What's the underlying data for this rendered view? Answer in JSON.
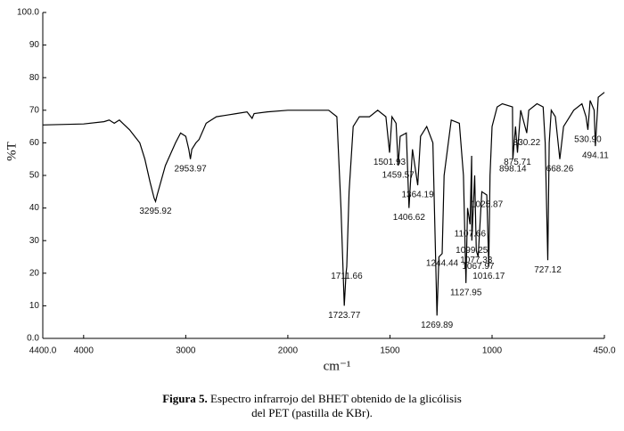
{
  "chart_data": {
    "type": "line",
    "x_label": "cm⁻¹",
    "y_label": "%T",
    "xlim": [
      4400,
      450
    ],
    "ylim": [
      0,
      100
    ],
    "x_scale_change": 2000,
    "xticks": [
      {
        "value": 4400,
        "label": "4400.0"
      },
      4000,
      3000,
      2000,
      1500,
      1000,
      {
        "value": 450,
        "label": "450.0"
      }
    ],
    "yticks": [
      {
        "value": 0,
        "label": "0.0"
      },
      10,
      20,
      30,
      40,
      50,
      60,
      70,
      80,
      90,
      {
        "value": 100,
        "label": "100.0"
      }
    ],
    "color": "#000000",
    "x": [
      4400,
      4000,
      3800,
      3750,
      3700,
      3650,
      3600,
      3550,
      3500,
      3450,
      3400,
      3350,
      3310,
      3295.92,
      3280,
      3200,
      3100,
      3050,
      3000,
      2970,
      2953.97,
      2940,
      2900,
      2870,
      2800,
      2700,
      2600,
      2500,
      2400,
      2350,
      2330,
      2200,
      2000,
      1900,
      1800,
      1760,
      1740,
      1723.77,
      1715,
      1711.66,
      1700,
      1680,
      1650,
      1600,
      1560,
      1520,
      1501.93,
      1490,
      1470,
      1459.57,
      1450,
      1420,
      1406.62,
      1390,
      1364.19,
      1350,
      1320,
      1290,
      1269.89,
      1260,
      1244.44,
      1235,
      1200,
      1160,
      1140,
      1127.95,
      1120,
      1107.66,
      1100,
      1099.25,
      1085,
      1077.33,
      1067.97,
      1050,
      1025.87,
      1016.17,
      1010,
      1000,
      975,
      950,
      900,
      898.14,
      885,
      875.71,
      860,
      830.22,
      820,
      780,
      750,
      740,
      727.12,
      720,
      710,
      690,
      668.26,
      650,
      600,
      560,
      540,
      530.9,
      520,
      500,
      494.11,
      480,
      450
    ],
    "y": [
      65.5,
      65.8,
      66.5,
      67,
      66,
      67,
      65.5,
      64,
      62,
      60,
      55,
      48,
      43,
      42,
      44,
      53,
      60,
      63,
      62,
      58,
      55,
      58,
      60,
      61,
      66,
      68,
      68.5,
      69,
      69.5,
      67.5,
      69,
      69.5,
      70,
      70,
      70,
      68,
      40,
      10,
      20,
      22,
      45,
      65,
      68,
      68,
      70,
      68,
      57,
      68,
      66,
      53,
      62,
      63,
      40,
      58,
      47,
      62,
      65,
      60,
      7,
      25,
      26,
      50,
      67,
      66,
      50,
      17,
      40,
      35,
      56,
      30,
      50,
      27,
      25,
      45,
      44,
      22,
      50,
      65,
      71,
      72,
      71,
      55,
      65,
      57,
      70,
      63,
      70,
      72,
      71,
      60,
      24,
      60,
      70,
      68,
      55,
      65,
      70,
      72,
      68,
      64,
      73,
      70,
      59,
      74,
      75.5
    ],
    "annotations": [
      {
        "text": "3295.92",
        "x": 3295.92
      },
      {
        "text": "2953.97",
        "x": 2953.97
      },
      {
        "text": "1723.77",
        "x": 1723.77
      },
      {
        "text": "1711.66",
        "x": 1711.66
      },
      {
        "text": "1501.93",
        "x": 1501.93
      },
      {
        "text": "1459.57",
        "x": 1459.57
      },
      {
        "text": "1406.62",
        "x": 1406.62
      },
      {
        "text": "1364.19",
        "x": 1364.19
      },
      {
        "text": "1269.89",
        "x": 1269.89
      },
      {
        "text": "1244.44",
        "x": 1244.44
      },
      {
        "text": "1127.95",
        "x": 1127.95
      },
      {
        "text": "1107.66",
        "x": 1107.66
      },
      {
        "text": "1099.25",
        "x": 1099.25
      },
      {
        "text": "1077.33",
        "x": 1077.33
      },
      {
        "text": "1067.97",
        "x": 1067.97
      },
      {
        "text": "1025.87",
        "x": 1025.87
      },
      {
        "text": "1016.17",
        "x": 1016.17
      },
      {
        "text": "898.14",
        "x": 898.14
      },
      {
        "text": "875.71",
        "x": 875.71
      },
      {
        "text": "830.22",
        "x": 830.22
      },
      {
        "text": "727.12",
        "x": 727.12
      },
      {
        "text": "668.26",
        "x": 668.26
      },
      {
        "text": "530.90",
        "x": 530.9
      },
      {
        "text": "494.11",
        "x": 494.11
      }
    ],
    "caption_label": "Figura 5.",
    "caption_lines": [
      "Espectro infrarrojo del BHET obtenido de la glicólisis",
      "del PET (pastilla de KBr)."
    ]
  }
}
